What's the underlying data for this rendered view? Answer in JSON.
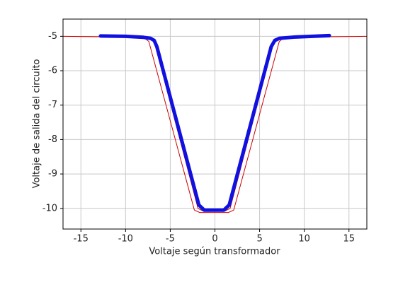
{
  "chart_data": {
    "type": "line",
    "xlabel": "Voltaje según transformador",
    "ylabel": "Voltaje de salida del circuito",
    "xlim": [
      -17,
      17
    ],
    "ylim": [
      -10.6,
      -4.5
    ],
    "xticks": [
      -15,
      -10,
      -5,
      0,
      5,
      10,
      15
    ],
    "yticks": [
      -10,
      -9,
      -8,
      -7,
      -6,
      -5
    ],
    "grid": true,
    "series": [
      {
        "color": "#cc0000",
        "width": 1,
        "x": [
          -17,
          -8.0,
          -7.4,
          -2.3,
          -1.7,
          1.5,
          2.1,
          7.2,
          7.8,
          17,
          null,
          -17,
          -7.4,
          -6.8,
          -1.9,
          -1.3,
          1.1,
          1.7,
          6.6,
          7.2,
          17
        ],
        "values": [
          -5.0,
          -5.03,
          -5.15,
          -10.05,
          -10.12,
          -10.12,
          -10.05,
          -5.15,
          -5.03,
          -5.0,
          null,
          -5.0,
          -5.03,
          -5.15,
          -10.0,
          -10.08,
          -10.08,
          -10.0,
          -5.15,
          -5.03,
          -5.0
        ]
      },
      {
        "color": "#1010e0",
        "width": 5,
        "x": [
          -12.8,
          -10,
          -8,
          -7.2,
          -6.8,
          -6.5,
          -1.8,
          -1.2,
          1.0,
          1.6,
          6.3,
          6.7,
          7.2,
          9,
          12.8
        ],
        "values": [
          -4.99,
          -5.0,
          -5.03,
          -5.06,
          -5.12,
          -5.3,
          -9.9,
          -10.05,
          -10.05,
          -9.9,
          -5.3,
          -5.12,
          -5.06,
          -5.02,
          -4.98
        ]
      }
    ]
  }
}
